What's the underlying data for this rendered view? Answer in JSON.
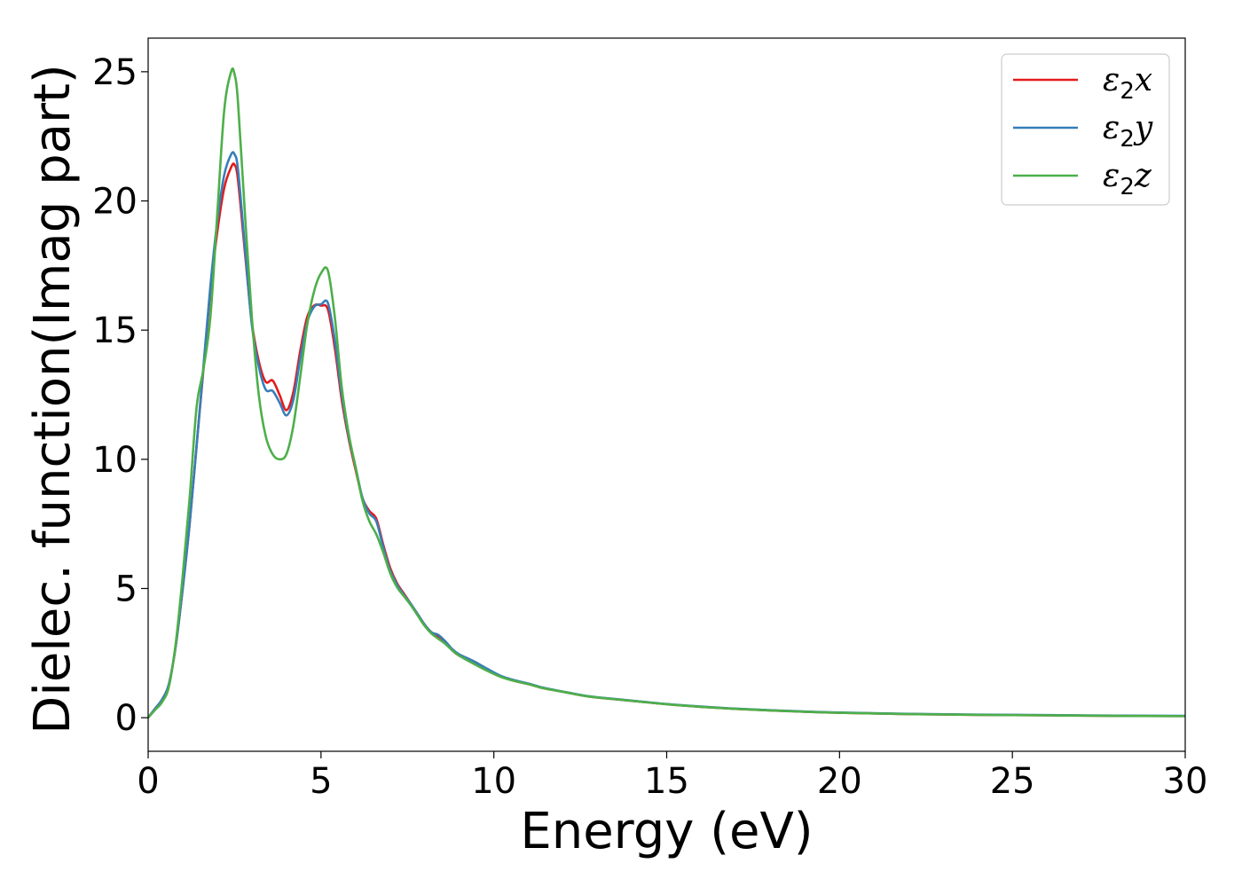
{
  "chart_data": {
    "type": "line",
    "title": "",
    "xlabel": "Energy (eV)",
    "ylabel": "Dielec. function(Imag part)",
    "xlim": [
      0,
      30
    ],
    "ylim": [
      -1.3,
      26.3
    ],
    "xticks": [
      0,
      5,
      10,
      15,
      20,
      25,
      30
    ],
    "yticks": [
      0,
      5,
      10,
      15,
      20,
      25
    ],
    "grid": false,
    "legend_position": "top-right",
    "series": [
      {
        "name": "ε2x",
        "symbol": "ε",
        "subscript": "2",
        "axis": "x",
        "color": "#e41a1c",
        "x": [
          0,
          0.2,
          0.4,
          0.6,
          0.8,
          1.0,
          1.2,
          1.4,
          1.6,
          1.8,
          2.0,
          2.2,
          2.4,
          2.5,
          2.6,
          2.8,
          3.0,
          3.2,
          3.4,
          3.6,
          3.8,
          4.0,
          4.2,
          4.4,
          4.6,
          4.8,
          5.0,
          5.2,
          5.4,
          5.6,
          5.8,
          6.0,
          6.2,
          6.4,
          6.6,
          6.8,
          7.0,
          7.2,
          7.4,
          7.6,
          7.8,
          8.0,
          8.2,
          8.4,
          8.6,
          8.8,
          9.0,
          9.4,
          9.8,
          10.2,
          10.6,
          11.0,
          11.4,
          11.8,
          12.2,
          12.6,
          13.0,
          14.0,
          15.0,
          16.0,
          17.0,
          18.0,
          19.0,
          20.0,
          22.0,
          24.0,
          26.0,
          28.0,
          30.0
        ],
        "values": [
          0.0,
          0.35,
          0.7,
          1.3,
          2.8,
          5.0,
          7.5,
          10.5,
          13.5,
          16.5,
          18.8,
          20.5,
          21.3,
          21.4,
          20.8,
          18.0,
          15.3,
          13.8,
          13.0,
          13.05,
          12.5,
          11.9,
          12.6,
          14.2,
          15.5,
          15.95,
          15.95,
          15.8,
          14.3,
          12.3,
          10.8,
          9.6,
          8.5,
          8.0,
          7.7,
          6.7,
          5.8,
          5.2,
          4.8,
          4.4,
          4.0,
          3.6,
          3.3,
          3.15,
          2.9,
          2.6,
          2.4,
          2.15,
          1.85,
          1.6,
          1.42,
          1.3,
          1.15,
          1.05,
          0.95,
          0.85,
          0.78,
          0.65,
          0.52,
          0.42,
          0.34,
          0.28,
          0.23,
          0.19,
          0.14,
          0.11,
          0.09,
          0.07,
          0.06
        ]
      },
      {
        "name": "ε2y",
        "symbol": "ε",
        "subscript": "2",
        "axis": "y",
        "color": "#377eb8",
        "x": [
          0,
          0.2,
          0.4,
          0.6,
          0.8,
          1.0,
          1.2,
          1.4,
          1.6,
          1.8,
          2.0,
          2.2,
          2.4,
          2.5,
          2.6,
          2.8,
          3.0,
          3.2,
          3.4,
          3.6,
          3.8,
          4.0,
          4.2,
          4.4,
          4.6,
          4.8,
          5.0,
          5.2,
          5.4,
          5.6,
          5.8,
          6.0,
          6.2,
          6.4,
          6.6,
          6.8,
          7.0,
          7.2,
          7.4,
          7.6,
          7.8,
          8.0,
          8.2,
          8.4,
          8.6,
          8.8,
          9.0,
          9.4,
          9.8,
          10.2,
          10.6,
          11.0,
          11.4,
          11.8,
          12.2,
          12.6,
          13.0,
          14.0,
          15.0,
          16.0,
          17.0,
          18.0,
          19.0,
          20.0,
          22.0,
          24.0,
          26.0,
          28.0,
          30.0
        ],
        "values": [
          0.0,
          0.35,
          0.7,
          1.3,
          2.8,
          5.0,
          7.5,
          10.5,
          13.6,
          16.7,
          19.2,
          21.0,
          21.8,
          21.8,
          21.2,
          18.2,
          15.2,
          13.6,
          12.7,
          12.65,
          12.2,
          11.7,
          12.3,
          13.9,
          15.3,
          15.9,
          16.0,
          16.05,
          14.6,
          12.5,
          10.9,
          9.7,
          8.5,
          7.9,
          7.6,
          6.6,
          5.7,
          5.15,
          4.75,
          4.4,
          4.0,
          3.6,
          3.3,
          3.2,
          2.95,
          2.65,
          2.45,
          2.2,
          1.9,
          1.62,
          1.45,
          1.32,
          1.17,
          1.06,
          0.96,
          0.86,
          0.79,
          0.66,
          0.53,
          0.43,
          0.35,
          0.29,
          0.24,
          0.2,
          0.15,
          0.12,
          0.1,
          0.08,
          0.07
        ]
      },
      {
        "name": "ε2z",
        "symbol": "ε",
        "subscript": "2",
        "axis": "z",
        "color": "#4daf4a",
        "x": [
          0,
          0.2,
          0.4,
          0.6,
          0.8,
          1.0,
          1.2,
          1.4,
          1.6,
          1.8,
          2.0,
          2.2,
          2.4,
          2.5,
          2.6,
          2.8,
          3.0,
          3.2,
          3.4,
          3.6,
          3.8,
          4.0,
          4.2,
          4.4,
          4.6,
          4.8,
          5.0,
          5.2,
          5.4,
          5.6,
          5.8,
          6.0,
          6.2,
          6.4,
          6.6,
          6.8,
          7.0,
          7.2,
          7.4,
          7.6,
          7.8,
          8.0,
          8.2,
          8.4,
          8.6,
          8.8,
          9.0,
          9.4,
          9.8,
          10.2,
          10.6,
          11.0,
          11.4,
          11.8,
          12.2,
          12.6,
          13.0,
          14.0,
          15.0,
          16.0,
          17.0,
          18.0,
          19.0,
          20.0,
          22.0,
          24.0,
          26.0,
          28.0,
          30.0
        ],
        "values": [
          0.0,
          0.3,
          0.6,
          1.2,
          2.9,
          5.5,
          8.5,
          12.0,
          13.5,
          15.5,
          19.5,
          23.5,
          25.0,
          24.9,
          23.8,
          19.5,
          15.5,
          12.5,
          10.9,
          10.2,
          10.0,
          10.2,
          11.3,
          13.2,
          15.2,
          16.5,
          17.2,
          17.3,
          15.5,
          12.8,
          11.0,
          9.7,
          8.4,
          7.6,
          7.1,
          6.4,
          5.6,
          5.05,
          4.7,
          4.35,
          3.95,
          3.55,
          3.25,
          3.05,
          2.85,
          2.6,
          2.4,
          2.1,
          1.82,
          1.58,
          1.42,
          1.3,
          1.15,
          1.05,
          0.95,
          0.85,
          0.78,
          0.65,
          0.52,
          0.42,
          0.34,
          0.28,
          0.23,
          0.19,
          0.14,
          0.11,
          0.09,
          0.07,
          0.06
        ]
      }
    ]
  }
}
